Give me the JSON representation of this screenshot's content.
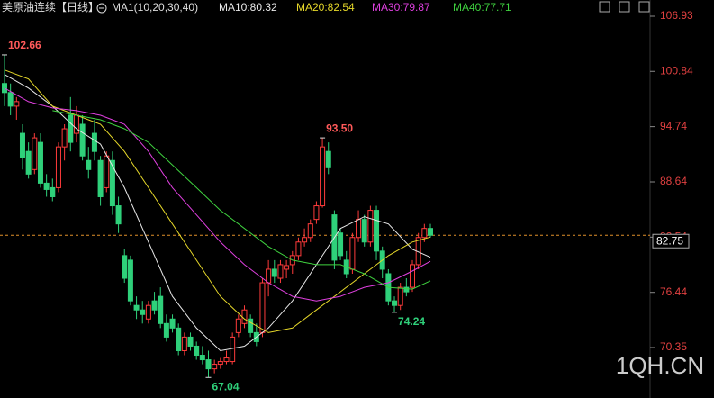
{
  "chart_data": {
    "type": "candlestick",
    "title": "美原油连续",
    "period": "【日线】",
    "indicator": "MA1(10,20,30,40)",
    "ylim": [
      64.78,
      108.72
    ],
    "yticks": [
      106.93,
      100.84,
      94.74,
      88.64,
      82.54,
      76.44,
      70.35
    ],
    "last_price": 82.75,
    "up_color": "#ff3b3b",
    "down_color": "#2fd07a",
    "candles": [
      [
        99.5,
        102.66,
        97,
        98.5
      ],
      [
        98.5,
        99.5,
        96,
        97
      ],
      [
        97,
        98,
        95.5,
        97.5
      ],
      [
        94,
        95,
        90,
        91.3
      ],
      [
        92,
        93,
        89,
        89.5
      ],
      [
        90,
        94,
        89.5,
        93.5
      ],
      [
        93,
        94,
        88,
        88.5
      ],
      [
        88.5,
        89.5,
        87,
        87.8
      ],
      [
        88,
        89,
        86.5,
        87
      ],
      [
        88,
        93,
        87.5,
        92.5
      ],
      [
        92.5,
        95,
        91,
        94.5
      ],
      [
        96,
        98,
        92,
        93
      ],
      [
        94,
        97,
        93,
        96
      ],
      [
        95,
        96,
        91,
        91.5
      ],
      [
        91,
        92.5,
        89,
        90
      ],
      [
        94,
        95.5,
        91,
        92
      ],
      [
        91,
        91.5,
        86,
        87
      ],
      [
        88,
        92,
        87.5,
        91.5
      ],
      [
        91,
        92,
        85,
        86
      ],
      [
        86,
        87,
        83,
        84
      ],
      [
        80.5,
        81.2,
        77.5,
        78
      ],
      [
        80,
        80.5,
        75,
        75.5
      ],
      [
        75,
        76,
        73.5,
        74.5
      ],
      [
        74.5,
        75.5,
        73,
        74
      ],
      [
        73.5,
        75.5,
        73,
        75
      ],
      [
        75.5,
        76.5,
        74,
        74.5
      ],
      [
        76,
        77,
        72.5,
        73
      ],
      [
        73,
        74,
        71,
        71.5
      ],
      [
        73.5,
        74,
        72,
        72.5
      ],
      [
        72.5,
        73,
        69.5,
        70
      ],
      [
        70,
        72,
        69.5,
        71.5
      ],
      [
        71.5,
        72,
        70,
        70.5
      ],
      [
        70.5,
        71,
        69,
        69.5
      ],
      [
        69.5,
        70.5,
        68.5,
        69
      ],
      [
        69,
        70,
        67.04,
        68
      ],
      [
        68,
        69,
        67.5,
        68.5
      ],
      [
        68.5,
        69.2,
        68,
        68.8
      ],
      [
        68.8,
        70,
        68.5,
        69.2
      ],
      [
        68.8,
        72,
        68.5,
        71.5
      ],
      [
        72,
        74,
        71.5,
        73.5
      ],
      [
        73,
        75,
        72.5,
        74.5
      ],
      [
        73.5,
        74,
        71.5,
        72
      ],
      [
        72,
        73,
        70.5,
        71
      ],
      [
        72,
        78,
        71.5,
        77.5
      ],
      [
        77.5,
        80,
        76,
        79
      ],
      [
        79,
        80,
        77.5,
        78.2
      ],
      [
        78,
        80,
        77.5,
        79.5
      ],
      [
        79,
        80,
        78,
        79.4
      ],
      [
        79.5,
        81,
        78.5,
        80.5
      ],
      [
        80.5,
        82.5,
        80,
        82
      ],
      [
        82,
        83.5,
        81.5,
        82.5
      ],
      [
        82.5,
        84.5,
        82,
        84
      ],
      [
        84.5,
        86.5,
        84,
        86
      ],
      [
        86,
        93.5,
        85.8,
        92.5
      ],
      [
        92,
        93,
        89.5,
        90.2
      ],
      [
        85,
        85.5,
        79,
        80
      ],
      [
        83,
        83.5,
        80,
        80.5
      ],
      [
        80,
        81,
        78,
        78.5
      ],
      [
        79,
        83,
        78.5,
        82.5
      ],
      [
        82.5,
        85.5,
        82,
        84.5
      ],
      [
        84.5,
        85,
        81.5,
        82
      ],
      [
        82,
        86,
        81.5,
        85.5
      ],
      [
        85.5,
        86,
        80,
        81
      ],
      [
        81,
        81.5,
        78,
        79
      ],
      [
        78.5,
        79,
        75,
        75.5
      ],
      [
        75.5,
        76,
        74.24,
        75
      ],
      [
        75,
        77.5,
        74.5,
        77
      ],
      [
        77,
        78,
        76,
        76.5
      ],
      [
        77,
        80,
        76.5,
        79.5
      ],
      [
        79.5,
        83,
        79,
        82.5
      ],
      [
        82.5,
        84,
        82,
        83.5
      ],
      [
        83.5,
        84,
        82.5,
        82.75
      ]
    ],
    "series": [
      {
        "name": "MA10:80.32",
        "color": "#e8e8e8",
        "x": [
          0,
          4,
          8,
          12,
          16,
          20,
          24,
          28,
          32,
          36,
          40,
          44,
          48,
          52,
          56,
          60,
          64,
          68,
          71
        ],
        "values": [
          100.5,
          99,
          97,
          94.5,
          92.8,
          88,
          82,
          76,
          72.5,
          70,
          70.5,
          72.5,
          75.5,
          79.5,
          83.5,
          84.8,
          84,
          81.2,
          80.32
        ]
      },
      {
        "name": "MA20:82.54",
        "color": "#e6d82a",
        "x": [
          0,
          4,
          8,
          12,
          16,
          20,
          24,
          28,
          32,
          36,
          40,
          44,
          48,
          52,
          56,
          60,
          64,
          68,
          71
        ],
        "values": [
          101,
          100,
          97,
          96,
          95,
          92,
          88,
          84,
          80,
          76,
          73.5,
          72,
          72.5,
          74.5,
          76.5,
          78.5,
          80.5,
          82,
          82.54
        ]
      },
      {
        "name": "MA30:79.87",
        "color": "#e040e0",
        "x": [
          0,
          4,
          8,
          12,
          16,
          20,
          24,
          28,
          32,
          36,
          40,
          44,
          48,
          52,
          56,
          60,
          64,
          68,
          71
        ],
        "values": [
          99,
          97.5,
          96.8,
          96.5,
          96,
          95,
          92,
          88,
          85,
          82,
          79.5,
          77.5,
          76,
          75.5,
          76,
          77,
          77.5,
          78.8,
          79.87
        ]
      },
      {
        "name": "MA40:77.71",
        "color": "#3fd23f",
        "x": [
          8,
          12,
          16,
          20,
          24,
          28,
          32,
          36,
          40,
          44,
          48,
          52,
          56,
          60,
          64,
          68,
          71
        ],
        "values": [
          96.5,
          96,
          95.5,
          94.5,
          93,
          90.5,
          88,
          85.5,
          83.5,
          81.5,
          80,
          79.5,
          79.5,
          78.5,
          77,
          76.8,
          77.71
        ]
      }
    ],
    "annotations": [
      {
        "value": 102.66,
        "candle": 0,
        "color": "#ff5a5a"
      },
      {
        "value": 93.5,
        "candle": 53,
        "color": "#ff5a5a",
        "label": "93.50"
      },
      {
        "value": 74.24,
        "candle": 65,
        "color": "#2fd07a"
      },
      {
        "value": 67.04,
        "candle": 34,
        "color": "#2fd07a"
      }
    ],
    "watermark": "1QH.CN"
  }
}
